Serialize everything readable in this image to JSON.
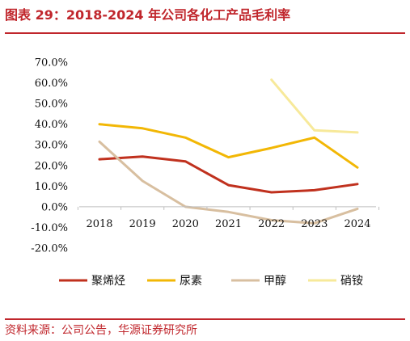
{
  "title": "图表 29：2018-2024 年公司各化工产品毛利率",
  "source": "资料来源：公司公告，华源证券研究所",
  "colors": {
    "accent": "#c0262c",
    "axis": "#bfbfbf"
  },
  "chart_data": {
    "type": "line",
    "title": "",
    "xlabel": "",
    "ylabel": "",
    "x": [
      "2018",
      "2019",
      "2020",
      "2021",
      "2022",
      "2023",
      "2024"
    ],
    "ylim": [
      -20,
      70
    ],
    "yticks": [
      "70.0%",
      "60.0%",
      "50.0%",
      "40.0%",
      "30.0%",
      "20.0%",
      "10.0%",
      "0.0%",
      "-10.0%",
      "-20.0%"
    ],
    "grid": false,
    "legend_position": "bottom",
    "series": [
      {
        "name": "聚烯烃",
        "color": "#c0311e",
        "values": [
          23.0,
          24.3,
          22.0,
          10.5,
          7.0,
          8.0,
          11.0
        ]
      },
      {
        "name": "尿素",
        "color": "#f2b705",
        "values": [
          40.0,
          38.0,
          33.5,
          24.0,
          28.5,
          33.5,
          19.0
        ]
      },
      {
        "name": "甲醇",
        "color": "#d8bfa0",
        "values": [
          31.5,
          12.5,
          0.0,
          -2.5,
          -6.5,
          -8.0,
          -1.0
        ]
      },
      {
        "name": "硝铵",
        "color": "#f7e99a",
        "values": [
          null,
          null,
          null,
          null,
          61.5,
          37.0,
          36.0
        ]
      }
    ]
  }
}
